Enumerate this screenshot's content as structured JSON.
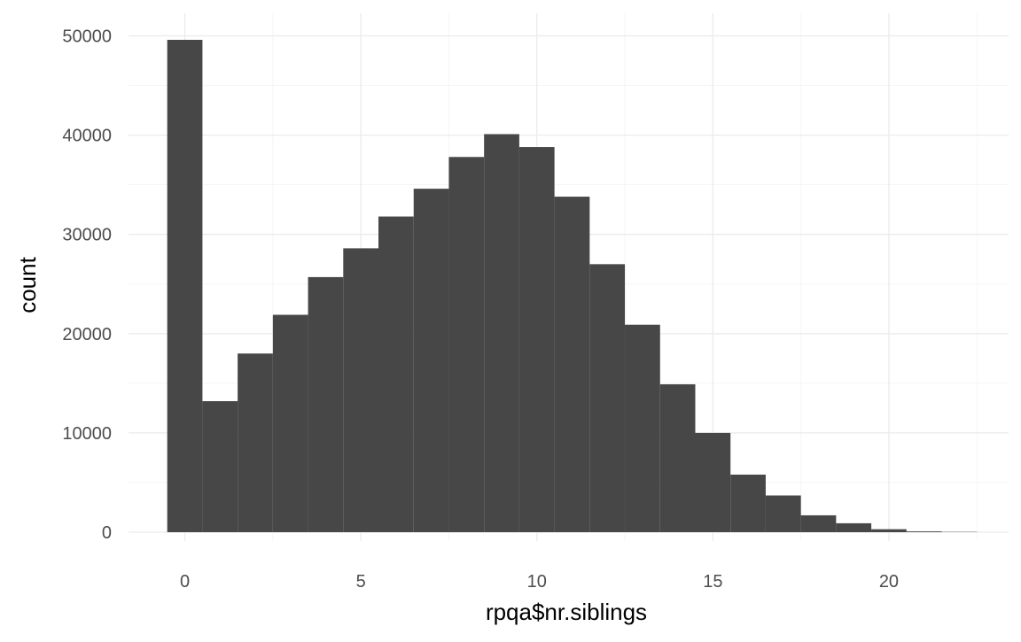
{
  "chart_data": {
    "type": "bar",
    "subtype": "histogram",
    "xlabel": "rpqa$nr.siblings",
    "ylabel": "count",
    "bin_width": 1,
    "x": [
      0,
      1,
      2,
      3,
      4,
      5,
      6,
      7,
      8,
      9,
      10,
      11,
      12,
      13,
      14,
      15,
      16,
      17,
      18,
      19,
      20,
      21,
      22
    ],
    "values": [
      49600,
      13200,
      18000,
      21900,
      25700,
      28600,
      31800,
      34600,
      37800,
      40100,
      38800,
      33800,
      27000,
      20900,
      14900,
      10000,
      5800,
      3700,
      1700,
      900,
      300,
      80,
      30
    ],
    "xlim": [
      -1.6,
      23.4
    ],
    "ylim": [
      0,
      52000
    ],
    "x_ticks": [
      0,
      5,
      10,
      15,
      20
    ],
    "y_ticks": [
      0,
      10000,
      20000,
      30000,
      40000,
      50000
    ],
    "x_tick_labels": [
      "0",
      "5",
      "10",
      "15",
      "20"
    ],
    "y_tick_labels": [
      "0",
      "10000",
      "20000",
      "30000",
      "40000",
      "50000"
    ],
    "bar_color": "#474747",
    "grid": true,
    "theme": "minimal"
  }
}
